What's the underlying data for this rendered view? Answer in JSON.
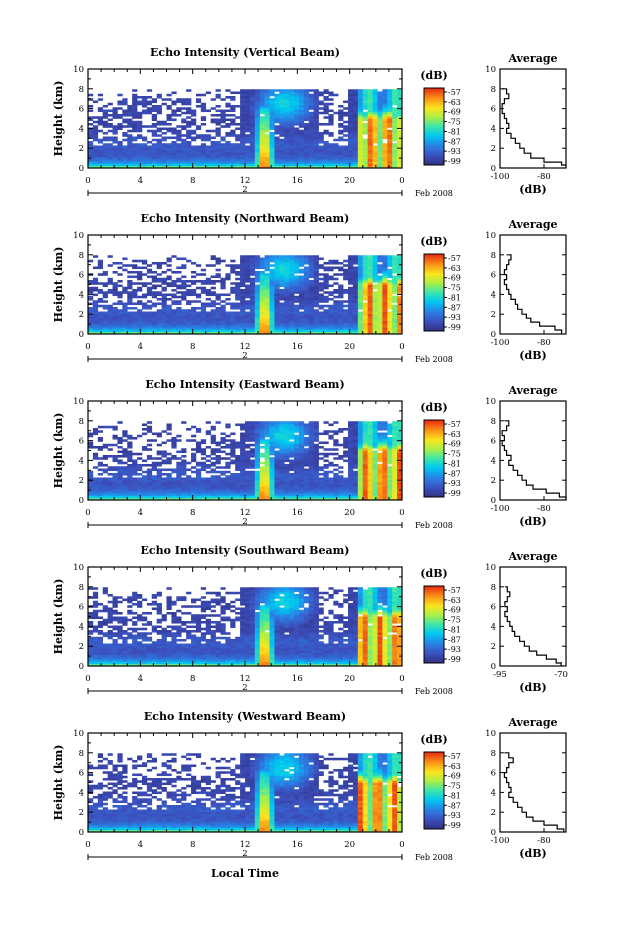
{
  "figure": {
    "date_label": "Feb 2008",
    "day_label": "2",
    "x_axis_label": "Local Time",
    "y_axis_label": "Height (km)",
    "colorbar_unit": "(dB)",
    "profile_title": "Average",
    "profile_xlabel": "(dB)"
  },
  "chart_data": [
    {
      "type": "heatmap",
      "title": "Echo Intensity (Vertical Beam)",
      "xlabel": "",
      "ylabel": "Height (km)",
      "xlim": [
        0,
        24
      ],
      "ylim": [
        0,
        10
      ],
      "xticks": [
        "0",
        "4",
        "8",
        "12",
        "16",
        "20",
        "0"
      ],
      "yticks": [
        "0",
        "2",
        "4",
        "6",
        "8",
        "10"
      ],
      "colorbar": {
        "label": "(dB)",
        "ticks": [
          "-57",
          "-63",
          "-69",
          "-75",
          "-81",
          "-87",
          "-93",
          "-99"
        ]
      },
      "profile": {
        "title": "Average",
        "xlabel": "(dB)",
        "xticks": [
          "-100",
          "-80"
        ],
        "xlim": [
          -100,
          -70
        ],
        "yticks": [
          "0",
          "2",
          "4",
          "6",
          "8",
          "10"
        ],
        "points": [
          [
            -70,
            0
          ],
          [
            -72,
            0.3
          ],
          [
            -80,
            0.6
          ],
          [
            -86,
            1
          ],
          [
            -89,
            1.5
          ],
          [
            -91,
            2
          ],
          [
            -93,
            2.5
          ],
          [
            -95,
            3
          ],
          [
            -97,
            3.5
          ],
          [
            -96,
            4
          ],
          [
            -97,
            4.5
          ],
          [
            -98,
            5
          ],
          [
            -99,
            5.5
          ],
          [
            -99,
            6
          ],
          [
            -98,
            6.5
          ],
          [
            -96,
            7
          ],
          [
            -97,
            7.5
          ],
          [
            -99,
            8
          ]
        ]
      }
    },
    {
      "type": "heatmap",
      "title": "Echo Intensity (Northward Beam)",
      "xlabel": "",
      "ylabel": "Height (km)",
      "xlim": [
        0,
        24
      ],
      "ylim": [
        0,
        10
      ],
      "xticks": [
        "0",
        "4",
        "8",
        "12",
        "16",
        "20",
        "0"
      ],
      "yticks": [
        "0",
        "2",
        "4",
        "6",
        "8",
        "10"
      ],
      "colorbar": {
        "label": "(dB)",
        "ticks": [
          "-57",
          "-63",
          "-69",
          "-75",
          "-81",
          "-87",
          "-93",
          "-99"
        ]
      },
      "profile": {
        "title": "Average",
        "xlabel": "(dB)",
        "xticks": [
          "-100",
          "-80"
        ],
        "xlim": [
          -100,
          -70
        ],
        "yticks": [
          "0",
          "2",
          "4",
          "6",
          "8",
          "10"
        ],
        "points": [
          [
            -72,
            0
          ],
          [
            -75,
            0.4
          ],
          [
            -82,
            0.8
          ],
          [
            -86,
            1.2
          ],
          [
            -88,
            1.6
          ],
          [
            -90,
            2
          ],
          [
            -92,
            2.5
          ],
          [
            -93,
            3
          ],
          [
            -95,
            3.5
          ],
          [
            -96,
            4
          ],
          [
            -97,
            4.5
          ],
          [
            -98,
            5
          ],
          [
            -97,
            5.5
          ],
          [
            -98,
            6
          ],
          [
            -97,
            6.5
          ],
          [
            -96,
            7
          ],
          [
            -95,
            7.5
          ],
          [
            -97,
            8
          ]
        ]
      }
    },
    {
      "type": "heatmap",
      "title": "Echo Intensity (Eastward Beam)",
      "xlabel": "",
      "ylabel": "Height (km)",
      "xlim": [
        0,
        24
      ],
      "ylim": [
        0,
        10
      ],
      "xticks": [
        "0",
        "4",
        "8",
        "12",
        "16",
        "20",
        "0"
      ],
      "yticks": [
        "0",
        "2",
        "4",
        "6",
        "8",
        "10"
      ],
      "colorbar": {
        "label": "(dB)",
        "ticks": [
          "-57",
          "-63",
          "-69",
          "-75",
          "-81",
          "-87",
          "-93",
          "-99"
        ]
      },
      "profile": {
        "title": "Average",
        "xlabel": "(dB)",
        "xticks": [
          "-100",
          "-80"
        ],
        "xlim": [
          -100,
          -70
        ],
        "yticks": [
          "0",
          "2",
          "4",
          "6",
          "8",
          "10"
        ],
        "points": [
          [
            -70,
            0
          ],
          [
            -73,
            0.3
          ],
          [
            -79,
            0.7
          ],
          [
            -85,
            1.1
          ],
          [
            -88,
            1.5
          ],
          [
            -90,
            2
          ],
          [
            -92,
            2.5
          ],
          [
            -94,
            3
          ],
          [
            -96,
            3.5
          ],
          [
            -95,
            4
          ],
          [
            -97,
            4.5
          ],
          [
            -98,
            5
          ],
          [
            -99,
            5.5
          ],
          [
            -98,
            6
          ],
          [
            -99,
            6.5
          ],
          [
            -97,
            7
          ],
          [
            -96,
            7.5
          ],
          [
            -98,
            8
          ]
        ]
      }
    },
    {
      "type": "heatmap",
      "title": "Echo Intensity (Southward Beam)",
      "xlabel": "",
      "ylabel": "Height (km)",
      "xlim": [
        0,
        24
      ],
      "ylim": [
        0,
        10
      ],
      "xticks": [
        "0",
        "4",
        "8",
        "12",
        "16",
        "20",
        "0"
      ],
      "yticks": [
        "0",
        "2",
        "4",
        "6",
        "8",
        "10"
      ],
      "colorbar": {
        "label": "(dB)",
        "ticks": [
          "-57",
          "-63",
          "-69",
          "-75",
          "-81",
          "-87",
          "-93",
          "-99"
        ]
      },
      "profile": {
        "title": "Average",
        "xlabel": "(dB)",
        "xticks": [
          "-95",
          "-70"
        ],
        "xlim": [
          -95,
          -68
        ],
        "yticks": [
          "0",
          "2",
          "4",
          "6",
          "8",
          "10"
        ],
        "points": [
          [
            -70,
            0
          ],
          [
            -72,
            0.3
          ],
          [
            -76,
            0.7
          ],
          [
            -80,
            1.1
          ],
          [
            -83,
            1.5
          ],
          [
            -85,
            2
          ],
          [
            -87,
            2.5
          ],
          [
            -89,
            3
          ],
          [
            -90,
            3.5
          ],
          [
            -91,
            4
          ],
          [
            -92,
            4.5
          ],
          [
            -93,
            5
          ],
          [
            -92,
            5.5
          ],
          [
            -93,
            6
          ],
          [
            -92,
            6.5
          ],
          [
            -91,
            7
          ],
          [
            -92,
            7.5
          ],
          [
            -93,
            8
          ]
        ]
      }
    },
    {
      "type": "heatmap",
      "title": "Echo Intensity (Westward Beam)",
      "xlabel": "Local Time",
      "ylabel": "Height (km)",
      "xlim": [
        0,
        24
      ],
      "ylim": [
        0,
        10
      ],
      "xticks": [
        "0",
        "4",
        "8",
        "12",
        "16",
        "20",
        "0"
      ],
      "yticks": [
        "0",
        "2",
        "4",
        "6",
        "8",
        "10"
      ],
      "colorbar": {
        "label": "(dB)",
        "ticks": [
          "-57",
          "-63",
          "-69",
          "-75",
          "-81",
          "-87",
          "-93",
          "-99"
        ]
      },
      "profile": {
        "title": "Average",
        "xlabel": "(dB)",
        "xticks": [
          "-100",
          "-80"
        ],
        "xlim": [
          -100,
          -70
        ],
        "yticks": [
          "0",
          "2",
          "4",
          "6",
          "8",
          "10"
        ],
        "points": [
          [
            -71,
            0
          ],
          [
            -74,
            0.3
          ],
          [
            -80,
            0.7
          ],
          [
            -85,
            1.1
          ],
          [
            -88,
            1.5
          ],
          [
            -90,
            2
          ],
          [
            -92,
            2.5
          ],
          [
            -94,
            3
          ],
          [
            -96,
            3.5
          ],
          [
            -95,
            4
          ],
          [
            -96,
            4.5
          ],
          [
            -97,
            5
          ],
          [
            -98,
            5.5
          ],
          [
            -97,
            6
          ],
          [
            -96,
            6.5
          ],
          [
            -94,
            7
          ],
          [
            -96,
            7.5
          ],
          [
            -98,
            8
          ]
        ]
      }
    }
  ]
}
